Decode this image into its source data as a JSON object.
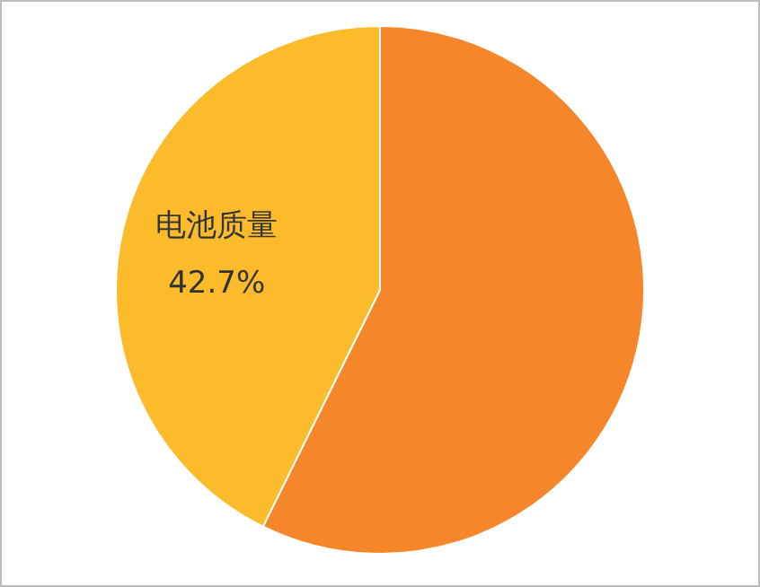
{
  "chart_data": {
    "type": "pie",
    "categories": [
      null,
      "电池质量"
    ],
    "values": [
      57.3,
      42.7
    ],
    "colors": [
      "#f5862a",
      "#fbbb2a"
    ],
    "value_labels": [
      null,
      "42.7%"
    ],
    "legend": false
  }
}
